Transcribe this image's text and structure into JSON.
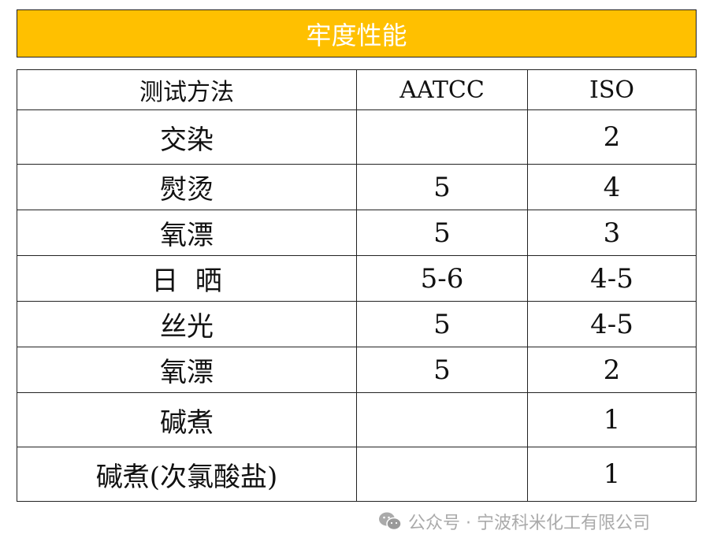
{
  "title": "牢度性能",
  "header": [
    "测试方法",
    "AATCC",
    "ISO"
  ],
  "rows": [
    {
      "method": "交染",
      "aatcc": "",
      "iso": "2"
    },
    {
      "method": "熨烫",
      "aatcc": "5",
      "iso": "4"
    },
    {
      "method": "氧漂",
      "aatcc": "5",
      "iso": "3"
    },
    {
      "method": "日  晒",
      "aatcc": "5-6",
      "iso": "4-5"
    },
    {
      "method": "丝光",
      "aatcc": "5",
      "iso": "4-5"
    },
    {
      "method": "氧漂",
      "aatcc": "5",
      "iso": "2"
    },
    {
      "method": "碱煮",
      "aatcc": "",
      "iso": "1"
    },
    {
      "method": "碱煮(次氯酸盐)",
      "aatcc": "",
      "iso": "1"
    }
  ],
  "watermark": {
    "icon": "wechat-icon",
    "text": "公众号 · 宁波科米化工有限公司"
  },
  "colors": {
    "title_bg": "#FFC000"
  }
}
